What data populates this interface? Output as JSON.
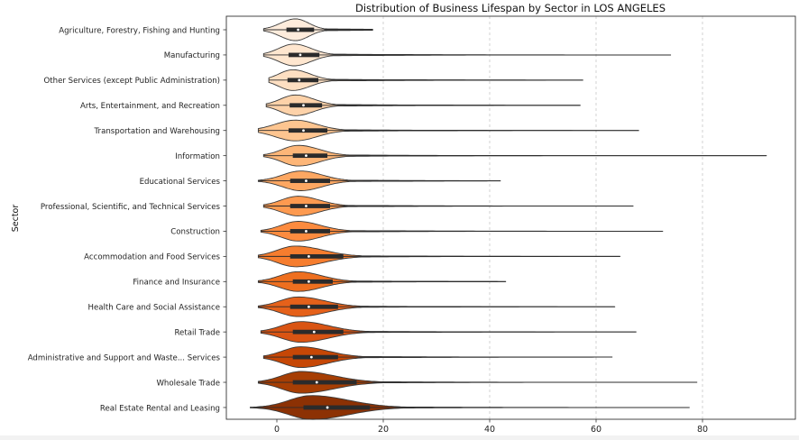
{
  "chart_data": {
    "type": "violin",
    "title": "Distribution of Business Lifespan by Sector in LOS ANGELES",
    "xlabel": "",
    "ylabel": "Sector",
    "xlim": [
      -10,
      97
    ],
    "xticks": [
      0,
      20,
      40,
      60,
      80
    ],
    "grid": {
      "x": true,
      "y": false
    },
    "palette": "Oranges",
    "categories": [
      "Agriculture, Forestry, Fishing and Hunting",
      "Manufacturing",
      "Other Services (except Public Administration)",
      "Arts, Entertainment, and Recreation",
      "Transportation and Warehousing",
      "Information",
      "Educational Services",
      "Professional, Scientific, and Technical Services",
      "Construction",
      "Accommodation and Food Services",
      "Finance and Insurance",
      "Health Care and Social Assistance",
      "Retail Trade",
      "Administrative and Support and Waste... Services",
      "Wholesale Trade",
      "Real Estate Rental and Leasing"
    ],
    "violins": [
      {
        "min": -2.5,
        "q1": 1.8,
        "median": 4.0,
        "q3": 7.0,
        "max": 18.0,
        "peak": 3.5,
        "spread": 2.8,
        "tail": 2.5,
        "width": 0.42,
        "color": "#feecdc"
      },
      {
        "min": -2.5,
        "q1": 2.2,
        "median": 4.4,
        "q3": 8.0,
        "max": 74.0,
        "peak": 3.2,
        "spread": 2.8,
        "tail": 3.2,
        "width": 0.42,
        "color": "#fee6cf"
      },
      {
        "min": -1.5,
        "q1": 2.0,
        "median": 4.2,
        "q3": 7.8,
        "max": 57.5,
        "peak": 3.0,
        "spread": 2.6,
        "tail": 3.2,
        "width": 0.4,
        "color": "#fddfc2"
      },
      {
        "min": -2.0,
        "q1": 2.4,
        "median": 5.0,
        "q3": 8.5,
        "max": 57.0,
        "peak": 3.5,
        "spread": 2.8,
        "tail": 3.4,
        "width": 0.4,
        "color": "#fdd2a9"
      },
      {
        "min": -3.5,
        "q1": 2.2,
        "median": 5.0,
        "q3": 9.5,
        "max": 68.0,
        "peak": 3.5,
        "spread": 3.8,
        "tail": 4.0,
        "width": 0.4,
        "color": "#fdc590"
      },
      {
        "min": -2.5,
        "q1": 3.0,
        "median": 5.5,
        "q3": 9.5,
        "max": 92.0,
        "peak": 4.0,
        "spread": 3.0,
        "tail": 4.0,
        "width": 0.4,
        "color": "#fdb678"
      },
      {
        "min": -3.5,
        "q1": 2.5,
        "median": 5.5,
        "q3": 10.0,
        "max": 42.0,
        "peak": 4.5,
        "spread": 3.4,
        "tail": 4.0,
        "width": 0.38,
        "color": "#fda762"
      },
      {
        "min": -2.5,
        "q1": 2.5,
        "median": 5.5,
        "q3": 10.0,
        "max": 67.0,
        "peak": 4.0,
        "spread": 3.2,
        "tail": 4.0,
        "width": 0.38,
        "color": "#fd9a50"
      },
      {
        "min": -3.0,
        "q1": 2.5,
        "median": 5.5,
        "q3": 10.0,
        "max": 72.5,
        "peak": 4.0,
        "spread": 3.2,
        "tail": 4.2,
        "width": 0.38,
        "color": "#fc8b3f"
      },
      {
        "min": -3.5,
        "q1": 2.5,
        "median": 6.0,
        "q3": 12.5,
        "max": 64.5,
        "peak": 3.5,
        "spread": 3.4,
        "tail": 5.2,
        "width": 0.4,
        "color": "#f67d2e"
      },
      {
        "min": -3.5,
        "q1": 3.0,
        "median": 6.0,
        "q3": 10.5,
        "max": 43.0,
        "peak": 4.0,
        "spread": 3.4,
        "tail": 4.4,
        "width": 0.38,
        "color": "#ee6f1f"
      },
      {
        "min": -3.5,
        "q1": 2.5,
        "median": 6.0,
        "q3": 11.5,
        "max": 63.5,
        "peak": 4.0,
        "spread": 3.4,
        "tail": 5.0,
        "width": 0.38,
        "color": "#e5611a"
      },
      {
        "min": -3.0,
        "q1": 3.0,
        "median": 7.0,
        "q3": 12.5,
        "max": 67.5,
        "peak": 4.5,
        "spread": 3.6,
        "tail": 5.2,
        "width": 0.4,
        "color": "#d95413"
      },
      {
        "min": -2.5,
        "q1": 3.0,
        "median": 6.5,
        "q3": 11.5,
        "max": 63.0,
        "peak": 4.5,
        "spread": 3.4,
        "tail": 5.0,
        "width": 0.4,
        "color": "#c64706"
      },
      {
        "min": -3.5,
        "q1": 3.0,
        "median": 7.5,
        "q3": 15.0,
        "max": 79.0,
        "peak": 4.5,
        "spread": 3.6,
        "tail": 6.2,
        "width": 0.42,
        "color": "#a63e04"
      },
      {
        "min": -5.0,
        "q1": 5.0,
        "median": 9.5,
        "q3": 17.5,
        "max": 77.5,
        "peak": 6.5,
        "spread": 4.2,
        "tail": 7.0,
        "width": 0.46,
        "color": "#8c3104"
      }
    ]
  }
}
